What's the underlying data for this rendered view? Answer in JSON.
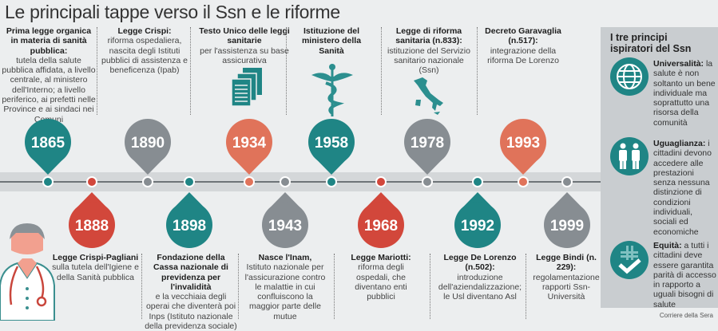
{
  "title": "Le principali tappe verso il Ssn e le riforme",
  "colors": {
    "teal": "#1f8585",
    "grey": "#878d92",
    "coral": "#e0735a",
    "red": "#d2473b"
  },
  "events_top": [
    {
      "year": "1865",
      "color": "teal",
      "head": "Prima legge organica in materia di sanità pubblica:",
      "text": "tutela della salute pubblica affidata, a livello centrale, al ministero dell'Interno; a livello periferico, ai prefetti nelle Province e ai sindaci nei Comuni"
    },
    {
      "year": "1890",
      "color": "grey",
      "head": "Legge Crispi:",
      "text": "riforma ospedaliera, nascita degli Istituti pubblici di assistenza e beneficenza (Ipab)"
    },
    {
      "year": "1934",
      "color": "coral",
      "head": "Testo Unico delle leggi sanitarie",
      "text": "per l'assistenza su base assicurativa",
      "icon": "documents-icon"
    },
    {
      "year": "1958",
      "color": "teal",
      "head": "Istituzione del ministero della Sanità",
      "text": "",
      "icon": "caduceus-icon"
    },
    {
      "year": "1978",
      "color": "grey",
      "head": "Legge di riforma sanitaria (n.833):",
      "text": "istituzione del Servizio sanitario nazionale (Ssn)",
      "icon": "italy-map-icon"
    },
    {
      "year": "1993",
      "color": "coral",
      "head": "Decreto Garavaglia (n.517):",
      "text": "integrazione della riforma De Lorenzo"
    }
  ],
  "events_bottom": [
    {
      "year": "1888",
      "color": "red",
      "head": "Legge Crispi-Pagliani",
      "text": "sulla tutela dell'Igiene e della Sanità pubblica"
    },
    {
      "year": "1898",
      "color": "teal",
      "head": "Fondazione della Cassa nazionale di previdenza per l'invalidità",
      "text": "e la vecchiaia degli operai che diventerà poi Inps (Istituto nazionale della previdenza sociale)"
    },
    {
      "year": "1943",
      "color": "grey",
      "head": "Nasce l'Inam,",
      "text": "Istituto nazionale per l'assicurazione contro le malattie in cui confluiscono la maggior parte delle mutue"
    },
    {
      "year": "1968",
      "color": "red",
      "head": "Legge Mariotti:",
      "text": "riforma degli ospedali, che diventano enti pubblici"
    },
    {
      "year": "1992",
      "color": "teal",
      "head": "Legge De Lorenzo (n.502):",
      "text": "introduzione dell'aziendalizzazione; le Usl diventano Asl"
    },
    {
      "year": "1999",
      "color": "grey",
      "head": "Legge Bindi (n. 229):",
      "text": "regolamentazione rapporti Ssn-Università"
    }
  ],
  "panel": {
    "title": "I tre principi ispiratori del Ssn",
    "principles": [
      {
        "name": "Universalità:",
        "text": "la salute è non soltanto un bene individuale ma soprattutto una risorsa della comunità",
        "icon": "globe-icon"
      },
      {
        "name": "Uguaglianza:",
        "text": "i cittadini devono accedere alle prestazioni senza nessuna distinzione di condizioni individuali, sociali ed economiche",
        "icon": "people-icon"
      },
      {
        "name": "Equità:",
        "text": "a tutti i cittadini deve essere garantita parità di accesso in rapporto a uguali bisogni di salute",
        "icon": "cross-check-icon"
      }
    ]
  },
  "credit": "Corriere della Sera"
}
